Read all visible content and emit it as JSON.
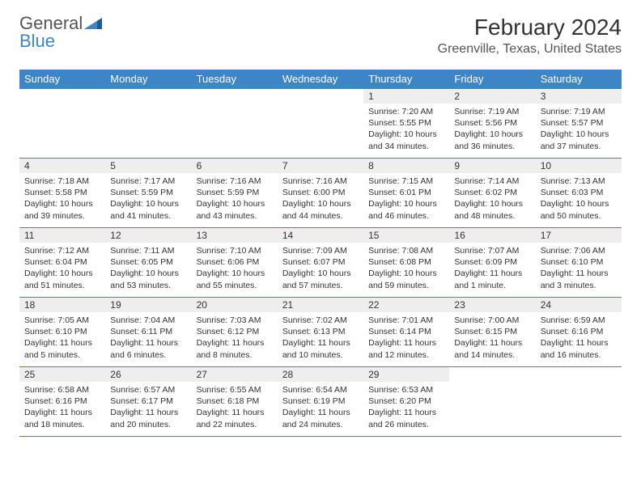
{
  "logo": {
    "text1": "General",
    "text2": "Blue"
  },
  "title": {
    "monthYear": "February 2024",
    "location": "Greenville, Texas, United States"
  },
  "colors": {
    "headerBg": "#3d85c6",
    "headerText": "#ffffff",
    "dayNumBg": "#eeeeee",
    "borderColor": "#3d85c6",
    "logoGray": "#555555",
    "logoBlue": "#3d85c6"
  },
  "dayHeaders": [
    "Sunday",
    "Monday",
    "Tuesday",
    "Wednesday",
    "Thursday",
    "Friday",
    "Saturday"
  ],
  "weeks": [
    [
      {
        "num": "",
        "sunrise": "",
        "sunset": "",
        "daylight": ""
      },
      {
        "num": "",
        "sunrise": "",
        "sunset": "",
        "daylight": ""
      },
      {
        "num": "",
        "sunrise": "",
        "sunset": "",
        "daylight": ""
      },
      {
        "num": "",
        "sunrise": "",
        "sunset": "",
        "daylight": ""
      },
      {
        "num": "1",
        "sunrise": "Sunrise: 7:20 AM",
        "sunset": "Sunset: 5:55 PM",
        "daylight": "Daylight: 10 hours and 34 minutes."
      },
      {
        "num": "2",
        "sunrise": "Sunrise: 7:19 AM",
        "sunset": "Sunset: 5:56 PM",
        "daylight": "Daylight: 10 hours and 36 minutes."
      },
      {
        "num": "3",
        "sunrise": "Sunrise: 7:19 AM",
        "sunset": "Sunset: 5:57 PM",
        "daylight": "Daylight: 10 hours and 37 minutes."
      }
    ],
    [
      {
        "num": "4",
        "sunrise": "Sunrise: 7:18 AM",
        "sunset": "Sunset: 5:58 PM",
        "daylight": "Daylight: 10 hours and 39 minutes."
      },
      {
        "num": "5",
        "sunrise": "Sunrise: 7:17 AM",
        "sunset": "Sunset: 5:59 PM",
        "daylight": "Daylight: 10 hours and 41 minutes."
      },
      {
        "num": "6",
        "sunrise": "Sunrise: 7:16 AM",
        "sunset": "Sunset: 5:59 PM",
        "daylight": "Daylight: 10 hours and 43 minutes."
      },
      {
        "num": "7",
        "sunrise": "Sunrise: 7:16 AM",
        "sunset": "Sunset: 6:00 PM",
        "daylight": "Daylight: 10 hours and 44 minutes."
      },
      {
        "num": "8",
        "sunrise": "Sunrise: 7:15 AM",
        "sunset": "Sunset: 6:01 PM",
        "daylight": "Daylight: 10 hours and 46 minutes."
      },
      {
        "num": "9",
        "sunrise": "Sunrise: 7:14 AM",
        "sunset": "Sunset: 6:02 PM",
        "daylight": "Daylight: 10 hours and 48 minutes."
      },
      {
        "num": "10",
        "sunrise": "Sunrise: 7:13 AM",
        "sunset": "Sunset: 6:03 PM",
        "daylight": "Daylight: 10 hours and 50 minutes."
      }
    ],
    [
      {
        "num": "11",
        "sunrise": "Sunrise: 7:12 AM",
        "sunset": "Sunset: 6:04 PM",
        "daylight": "Daylight: 10 hours and 51 minutes."
      },
      {
        "num": "12",
        "sunrise": "Sunrise: 7:11 AM",
        "sunset": "Sunset: 6:05 PM",
        "daylight": "Daylight: 10 hours and 53 minutes."
      },
      {
        "num": "13",
        "sunrise": "Sunrise: 7:10 AM",
        "sunset": "Sunset: 6:06 PM",
        "daylight": "Daylight: 10 hours and 55 minutes."
      },
      {
        "num": "14",
        "sunrise": "Sunrise: 7:09 AM",
        "sunset": "Sunset: 6:07 PM",
        "daylight": "Daylight: 10 hours and 57 minutes."
      },
      {
        "num": "15",
        "sunrise": "Sunrise: 7:08 AM",
        "sunset": "Sunset: 6:08 PM",
        "daylight": "Daylight: 10 hours and 59 minutes."
      },
      {
        "num": "16",
        "sunrise": "Sunrise: 7:07 AM",
        "sunset": "Sunset: 6:09 PM",
        "daylight": "Daylight: 11 hours and 1 minute."
      },
      {
        "num": "17",
        "sunrise": "Sunrise: 7:06 AM",
        "sunset": "Sunset: 6:10 PM",
        "daylight": "Daylight: 11 hours and 3 minutes."
      }
    ],
    [
      {
        "num": "18",
        "sunrise": "Sunrise: 7:05 AM",
        "sunset": "Sunset: 6:10 PM",
        "daylight": "Daylight: 11 hours and 5 minutes."
      },
      {
        "num": "19",
        "sunrise": "Sunrise: 7:04 AM",
        "sunset": "Sunset: 6:11 PM",
        "daylight": "Daylight: 11 hours and 6 minutes."
      },
      {
        "num": "20",
        "sunrise": "Sunrise: 7:03 AM",
        "sunset": "Sunset: 6:12 PM",
        "daylight": "Daylight: 11 hours and 8 minutes."
      },
      {
        "num": "21",
        "sunrise": "Sunrise: 7:02 AM",
        "sunset": "Sunset: 6:13 PM",
        "daylight": "Daylight: 11 hours and 10 minutes."
      },
      {
        "num": "22",
        "sunrise": "Sunrise: 7:01 AM",
        "sunset": "Sunset: 6:14 PM",
        "daylight": "Daylight: 11 hours and 12 minutes."
      },
      {
        "num": "23",
        "sunrise": "Sunrise: 7:00 AM",
        "sunset": "Sunset: 6:15 PM",
        "daylight": "Daylight: 11 hours and 14 minutes."
      },
      {
        "num": "24",
        "sunrise": "Sunrise: 6:59 AM",
        "sunset": "Sunset: 6:16 PM",
        "daylight": "Daylight: 11 hours and 16 minutes."
      }
    ],
    [
      {
        "num": "25",
        "sunrise": "Sunrise: 6:58 AM",
        "sunset": "Sunset: 6:16 PM",
        "daylight": "Daylight: 11 hours and 18 minutes."
      },
      {
        "num": "26",
        "sunrise": "Sunrise: 6:57 AM",
        "sunset": "Sunset: 6:17 PM",
        "daylight": "Daylight: 11 hours and 20 minutes."
      },
      {
        "num": "27",
        "sunrise": "Sunrise: 6:55 AM",
        "sunset": "Sunset: 6:18 PM",
        "daylight": "Daylight: 11 hours and 22 minutes."
      },
      {
        "num": "28",
        "sunrise": "Sunrise: 6:54 AM",
        "sunset": "Sunset: 6:19 PM",
        "daylight": "Daylight: 11 hours and 24 minutes."
      },
      {
        "num": "29",
        "sunrise": "Sunrise: 6:53 AM",
        "sunset": "Sunset: 6:20 PM",
        "daylight": "Daylight: 11 hours and 26 minutes."
      },
      {
        "num": "",
        "sunrise": "",
        "sunset": "",
        "daylight": ""
      },
      {
        "num": "",
        "sunrise": "",
        "sunset": "",
        "daylight": ""
      }
    ]
  ]
}
